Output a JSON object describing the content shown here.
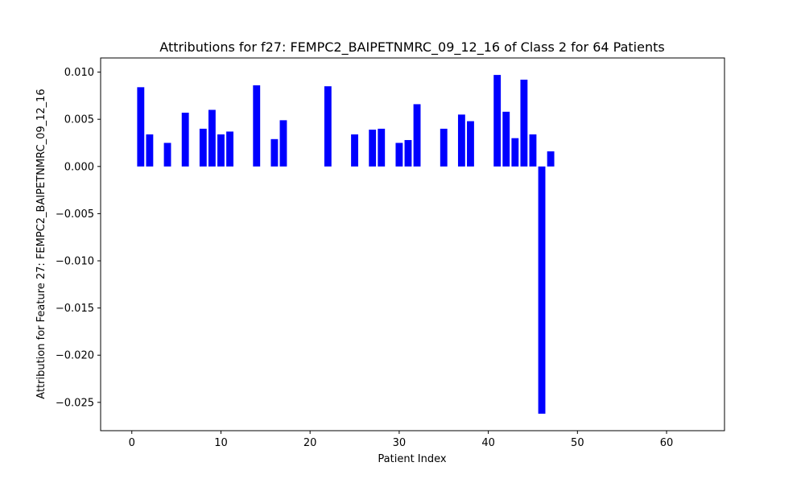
{
  "chart_data": {
    "type": "bar",
    "title": "Attributions for f27: FEMPC2_BAIPETNMRC_09_12_16 of Class 2 for 64 Patients",
    "xlabel": "Patient Index",
    "ylabel": "Attribution for Feature 27: FEMPC2_BAIPETNMRC_09_12_16",
    "xlim": [
      -3.5,
      66.5
    ],
    "ylim": [
      -0.028,
      0.0115
    ],
    "xticks": [
      0,
      10,
      20,
      30,
      40,
      50,
      60
    ],
    "xtick_labels": [
      "0",
      "10",
      "20",
      "30",
      "40",
      "50",
      "60"
    ],
    "yticks": [
      0.01,
      0.005,
      0.0,
      -0.005,
      -0.01,
      -0.015,
      -0.02,
      -0.025
    ],
    "ytick_labels": [
      "0.010",
      "0.005",
      "0.000",
      "−0.005",
      "−0.010",
      "−0.015",
      "−0.020",
      "−0.025"
    ],
    "grid": false,
    "bar_color": "#0000ff",
    "x": [
      1,
      2,
      4,
      6,
      8,
      9,
      10,
      11,
      14,
      16,
      17,
      22,
      25,
      27,
      28,
      30,
      31,
      32,
      35,
      37,
      38,
      41,
      42,
      43,
      44,
      45,
      46,
      47
    ],
    "values": [
      0.0084,
      0.0034,
      0.0025,
      0.0057,
      0.004,
      0.006,
      0.0034,
      0.0037,
      0.0086,
      0.0029,
      0.0049,
      0.0085,
      0.0034,
      0.0039,
      0.004,
      0.0025,
      0.0028,
      0.0066,
      0.004,
      0.0055,
      0.0048,
      0.0097,
      0.0058,
      0.003,
      0.0092,
      0.0034,
      -0.0262,
      0.0016
    ]
  }
}
